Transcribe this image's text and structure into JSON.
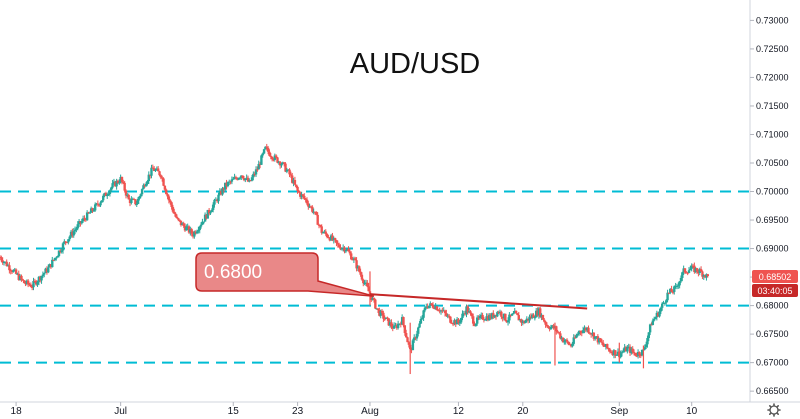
{
  "chart_data": {
    "type": "candlestick",
    "title": "AUD/USD",
    "ylim": [
      0.6645,
      0.732
    ],
    "y_ticks": [
      "0.73000",
      "0.72500",
      "0.72000",
      "0.71500",
      "0.71000",
      "0.70500",
      "0.70000",
      "0.69500",
      "0.69000",
      "0.68500",
      "0.68000",
      "0.67500",
      "0.67000",
      "0.66500"
    ],
    "x_ticks": [
      {
        "label": "18",
        "day": 0
      },
      {
        "label": "Jul",
        "day": 13
      },
      {
        "label": "15",
        "day": 27
      },
      {
        "label": "23",
        "day": 35
      },
      {
        "label": "Aug",
        "day": 44
      },
      {
        "label": "12",
        "day": 55
      },
      {
        "label": "20",
        "day": 63
      },
      {
        "label": "Sep",
        "day": 75
      },
      {
        "label": "10",
        "day": 84
      }
    ],
    "x_range": [
      -2,
      91
    ],
    "levels": [
      0.7,
      0.69,
      0.68,
      0.67
    ],
    "key_level_label": "0.6800",
    "trendline": {
      "from": {
        "day": 44,
        "price": 0.682
      },
      "to": {
        "day": 71,
        "price": 0.6795
      }
    },
    "last_price": "0.68502",
    "countdown": "03:40:05",
    "price_path": [
      [
        -2,
        0.6885
      ],
      [
        -1,
        0.687
      ],
      [
        0,
        0.6855
      ],
      [
        1,
        0.684
      ],
      [
        2,
        0.6835
      ],
      [
        4,
        0.6865
      ],
      [
        6,
        0.691
      ],
      [
        8,
        0.6945
      ],
      [
        10,
        0.6975
      ],
      [
        12,
        0.701
      ],
      [
        13,
        0.7022
      ],
      [
        14,
        0.6985
      ],
      [
        15,
        0.698
      ],
      [
        16,
        0.7015
      ],
      [
        17,
        0.704
      ],
      [
        18,
        0.703
      ],
      [
        19,
        0.6985
      ],
      [
        20,
        0.695
      ],
      [
        22,
        0.6925
      ],
      [
        24,
        0.6965
      ],
      [
        26,
        0.701
      ],
      [
        28,
        0.703
      ],
      [
        29,
        0.7015
      ],
      [
        30,
        0.704
      ],
      [
        31,
        0.7075
      ],
      [
        32,
        0.706
      ],
      [
        33,
        0.705
      ],
      [
        34,
        0.703
      ],
      [
        35,
        0.7
      ],
      [
        36,
        0.6985
      ],
      [
        37,
        0.6965
      ],
      [
        38,
        0.693
      ],
      [
        39,
        0.692
      ],
      [
        40,
        0.6905
      ],
      [
        41,
        0.69
      ],
      [
        42,
        0.688
      ],
      [
        43,
        0.685
      ],
      [
        44,
        0.682
      ],
      [
        45,
        0.679
      ],
      [
        46,
        0.6775
      ],
      [
        47,
        0.676
      ],
      [
        48,
        0.6775
      ],
      [
        49,
        0.672
      ],
      [
        50,
        0.676
      ],
      [
        51,
        0.68
      ],
      [
        52,
        0.68
      ],
      [
        53,
        0.679
      ],
      [
        54,
        0.6775
      ],
      [
        55,
        0.677
      ],
      [
        56,
        0.6795
      ],
      [
        57,
        0.677
      ],
      [
        58,
        0.678
      ],
      [
        59,
        0.678
      ],
      [
        60,
        0.679
      ],
      [
        61,
        0.6775
      ],
      [
        62,
        0.6785
      ],
      [
        63,
        0.677
      ],
      [
        64,
        0.678
      ],
      [
        65,
        0.679
      ],
      [
        66,
        0.6765
      ],
      [
        67,
        0.676
      ],
      [
        68,
        0.674
      ],
      [
        69,
        0.673
      ],
      [
        70,
        0.6755
      ],
      [
        71,
        0.676
      ],
      [
        72,
        0.6745
      ],
      [
        73,
        0.673
      ],
      [
        74,
        0.672
      ],
      [
        75,
        0.6715
      ],
      [
        76,
        0.6725
      ],
      [
        77,
        0.6715
      ],
      [
        78,
        0.672
      ],
      [
        79,
        0.677
      ],
      [
        80,
        0.679
      ],
      [
        81,
        0.682
      ],
      [
        82,
        0.683
      ],
      [
        83,
        0.686
      ],
      [
        84,
        0.6865
      ],
      [
        85,
        0.686
      ],
      [
        86,
        0.685
      ]
    ]
  },
  "colors": {
    "up": "#26a69a",
    "down": "#ef5350",
    "level_line": "#00bcd4",
    "trendline": "#c62828",
    "callout_fill": "#e57373",
    "callout_stroke": "#c62828",
    "last_price_tag": "#ef5350",
    "countdown_tag": "#c62828"
  },
  "icons": {
    "settings": "gear-icon"
  }
}
